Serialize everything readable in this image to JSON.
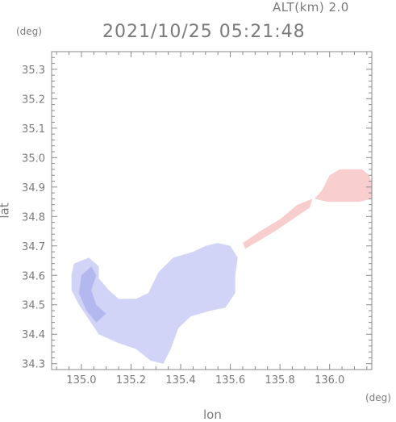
{
  "header": {
    "altitude_label": "ALT(km) 2.0",
    "timestamp": "2021/10/25 05:21:48"
  },
  "chart_data": {
    "type": "heatmap",
    "title": "2021/10/25 05:21:48",
    "subtitle": "ALT(km) 2.0",
    "xlabel": "lon",
    "ylabel": "lat",
    "x_unit": "(deg)",
    "y_unit": "(deg)",
    "xlim": [
      134.88,
      136.17
    ],
    "ylim": [
      34.28,
      35.36
    ],
    "x_ticks": [
      "135.0",
      "135.2",
      "135.4",
      "135.6",
      "135.8",
      "136.0"
    ],
    "y_ticks": [
      "34.3",
      "34.4",
      "34.5",
      "34.6",
      "34.7",
      "34.8",
      "34.9",
      "35.0",
      "35.1",
      "35.2",
      "35.3"
    ],
    "grid": false,
    "colors": {
      "negative": "#c9ccf4",
      "negative_strong": "#9aa2ea",
      "positive": "#f6c4c4",
      "positive_strong": "#f2a6a6",
      "axis": "#8a8a8a"
    },
    "regions": [
      {
        "name": "osaka-bay-area",
        "sign": "negative",
        "polygon": [
          [
            134.97,
            34.64
          ],
          [
            135.03,
            34.66
          ],
          [
            135.07,
            34.63
          ],
          [
            135.07,
            34.59
          ],
          [
            135.11,
            34.55
          ],
          [
            135.15,
            34.52
          ],
          [
            135.22,
            34.52
          ],
          [
            135.27,
            34.54
          ],
          [
            135.31,
            34.61
          ],
          [
            135.37,
            34.66
          ],
          [
            135.45,
            34.68
          ],
          [
            135.5,
            34.7
          ],
          [
            135.55,
            34.71
          ],
          [
            135.6,
            34.7
          ],
          [
            135.63,
            34.66
          ],
          [
            135.62,
            34.6
          ],
          [
            135.62,
            34.54
          ],
          [
            135.58,
            34.49
          ],
          [
            135.52,
            34.48
          ],
          [
            135.44,
            34.46
          ],
          [
            135.39,
            34.42
          ],
          [
            135.36,
            34.35
          ],
          [
            135.33,
            34.3
          ],
          [
            135.28,
            34.31
          ],
          [
            135.22,
            34.35
          ],
          [
            135.15,
            34.37
          ],
          [
            135.07,
            34.4
          ],
          [
            135.03,
            34.45
          ],
          [
            134.99,
            34.5
          ],
          [
            134.96,
            34.55
          ],
          [
            134.96,
            34.6
          ]
        ]
      },
      {
        "name": "inner-bay-hollow",
        "sign": "negative_strong",
        "polygon": [
          [
            135.0,
            34.6
          ],
          [
            135.04,
            34.63
          ],
          [
            135.06,
            34.6
          ],
          [
            135.04,
            34.55
          ],
          [
            135.06,
            34.5
          ],
          [
            135.1,
            34.47
          ],
          [
            135.06,
            34.44
          ],
          [
            135.02,
            34.48
          ],
          [
            134.99,
            34.54
          ]
        ]
      },
      {
        "name": "northeast-corridor",
        "sign": "positive",
        "polygon": [
          [
            135.65,
            34.71
          ],
          [
            135.72,
            34.75
          ],
          [
            135.8,
            34.79
          ],
          [
            135.87,
            34.84
          ],
          [
            135.93,
            34.86
          ],
          [
            135.92,
            34.83
          ],
          [
            135.85,
            34.79
          ],
          [
            135.78,
            34.75
          ],
          [
            135.7,
            34.71
          ],
          [
            135.66,
            34.69
          ]
        ]
      },
      {
        "name": "lake-biwa-south",
        "sign": "positive_strong",
        "polygon": [
          [
            135.94,
            34.86
          ],
          [
            135.97,
            34.89
          ],
          [
            136.0,
            34.94
          ],
          [
            136.04,
            34.96
          ],
          [
            136.09,
            34.96
          ],
          [
            136.13,
            34.96
          ],
          [
            136.16,
            34.94
          ],
          [
            136.17,
            34.91
          ],
          [
            136.17,
            34.86
          ],
          [
            136.12,
            34.85
          ],
          [
            136.05,
            34.85
          ],
          [
            135.99,
            34.85
          ]
        ]
      }
    ]
  }
}
